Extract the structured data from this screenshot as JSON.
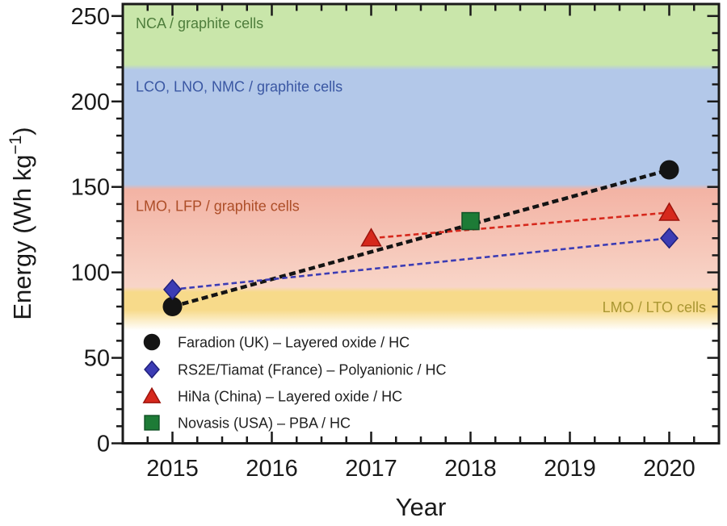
{
  "figure": {
    "background": "#ffffff",
    "frame_color": "#1a1a1a",
    "tick_label_color": "#1a1a1a"
  },
  "chart_data": {
    "type": "line",
    "title": "",
    "xlabel": "Year",
    "ylabel": "Energy (Wh kg⁻¹)",
    "xlim": [
      2014.5,
      2020.5
    ],
    "ylim": [
      0,
      257
    ],
    "x_ticks": [
      2015,
      2016,
      2017,
      2018,
      2019,
      2020
    ],
    "x_minor_step": 0.25,
    "y_ticks": [
      0,
      50,
      100,
      150,
      200,
      250
    ],
    "y_minor_step": 10,
    "grid": false,
    "legend_position": "lower-left-inside",
    "bands": [
      {
        "label": "NCA / graphite cells",
        "from": 220,
        "to": 257,
        "fill": "#c9e6aa",
        "label_color": "#4e7d3c",
        "label_side": "left"
      },
      {
        "label": "LCO, LNO, NMC / graphite cells",
        "from": 150,
        "to": 220,
        "fill": "#b3c8e9",
        "label_color": "#3a57a3",
        "label_side": "left"
      },
      {
        "label": "LMO, LFP / graphite cells",
        "from": 90,
        "to": 150,
        "fill_top": "#f3b3a4",
        "fill_bottom": "#f8d5c8",
        "label_color": "#ad4e28",
        "label_side": "left"
      },
      {
        "label": "LMO / LTO cells",
        "from": 70,
        "to": 90,
        "fill": "#f7da8a",
        "fade_bottom": true,
        "label_color": "#aa9733",
        "label_side": "right"
      }
    ],
    "series": [
      {
        "name": "Faradion (UK) – Layered oxide / HC",
        "marker": "circle",
        "color": "#141414",
        "edge": "#141414",
        "x": [
          2015,
          2020
        ],
        "y": [
          80,
          160
        ],
        "line_width": 4.5,
        "dash": "8 4.5"
      },
      {
        "name": "RS2E/Tiamat (France) – Polyanionic / HC",
        "marker": "diamond",
        "color": "#3c3cb4",
        "edge": "#20207d",
        "x": [
          2015,
          2020
        ],
        "y": [
          90,
          120
        ],
        "line_width": 2.6,
        "dash": "6.5 4"
      },
      {
        "name": "HiNa (China) – Layered oxide / HC",
        "marker": "triangle",
        "color": "#d6281c",
        "edge": "#9c130c",
        "x": [
          2017,
          2020
        ],
        "y": [
          120,
          135
        ],
        "line_width": 2.6,
        "dash": "6.5 4"
      },
      {
        "name": "Novasis (USA) – PBA / HC",
        "marker": "square",
        "color": "#1d7b36",
        "edge": "#115226",
        "x": [
          2018
        ],
        "y": [
          130
        ],
        "line_width": 0,
        "dash": ""
      }
    ]
  }
}
